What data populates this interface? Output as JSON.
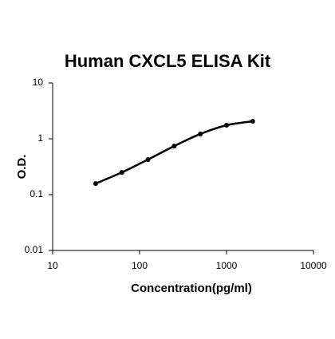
{
  "chart_data": {
    "type": "line",
    "title": "Human CXCL5 ELISA Kit",
    "x_label": "Concentration(pg/ml)",
    "y_label": "O.D.",
    "x": [
      31.25,
      62.5,
      125,
      250,
      500,
      1000,
      2000
    ],
    "series": [
      {
        "color": "#000000",
        "values": [
          0.158,
          0.25,
          0.425,
          0.74,
          1.22,
          1.75,
          2.06
        ]
      }
    ],
    "x_log": true,
    "y_log": true,
    "xlim": [
      10,
      10000
    ],
    "xticks": [
      10,
      100,
      1000,
      10000
    ],
    "ylim": [
      0.01,
      10
    ],
    "yticks": [
      0.01,
      0.1,
      1,
      10
    ],
    "markers": true
  }
}
